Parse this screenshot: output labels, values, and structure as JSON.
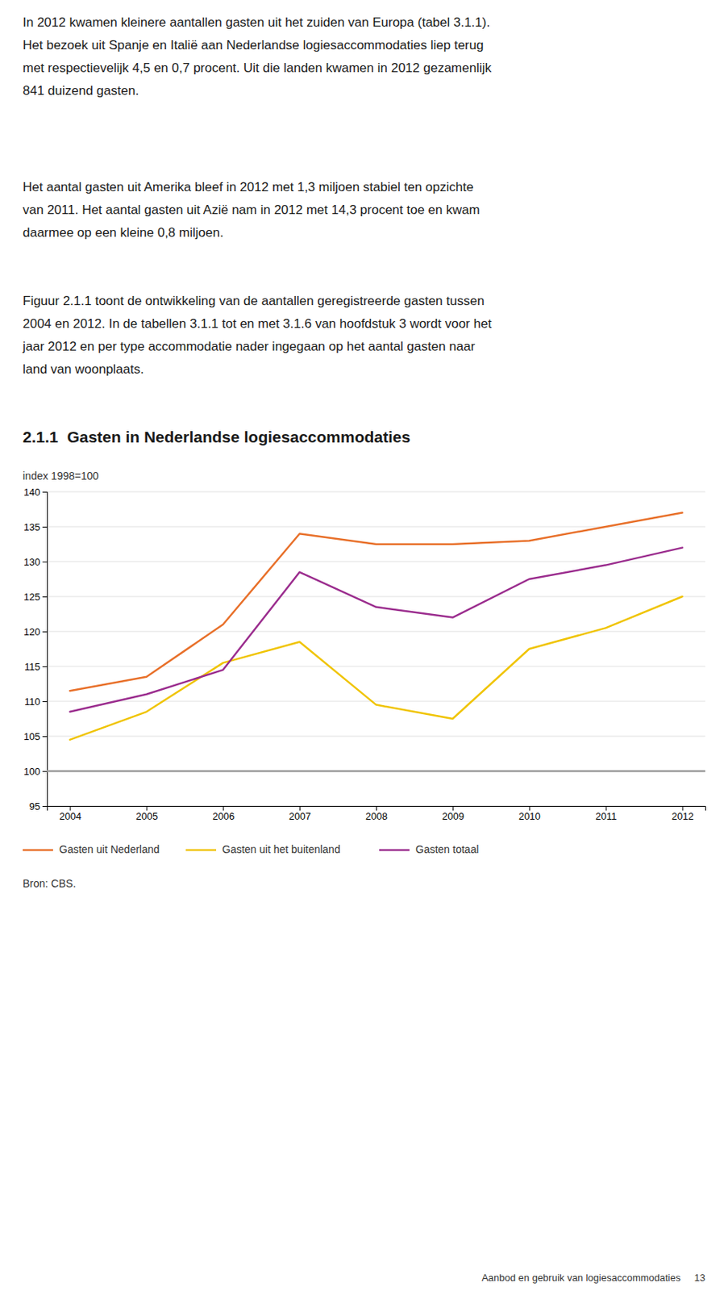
{
  "chart_data": {
    "type": "line",
    "title": "2.1.1  Gasten in Nederlandse logiesaccommodaties",
    "subtitle": "index 1998=100",
    "x": [
      2004,
      2005,
      2006,
      2007,
      2008,
      2009,
      2010,
      2011,
      2012
    ],
    "series": [
      {
        "name": "Gasten uit Nederland",
        "color": "#E8702A",
        "values": [
          111.5,
          113.5,
          121.0,
          134.0,
          132.5,
          132.5,
          133.0,
          135.0,
          137.0
        ]
      },
      {
        "name": "Gasten uit het buitenland",
        "color": "#F0C400",
        "values": [
          104.5,
          108.5,
          115.5,
          118.5,
          109.5,
          107.5,
          117.5,
          120.5,
          125.0
        ]
      },
      {
        "name": "Gasten totaal",
        "color": "#9B2D8E",
        "values": [
          108.5,
          111.0,
          114.5,
          128.5,
          123.5,
          122.0,
          127.5,
          129.5,
          132.0
        ]
      }
    ],
    "xlim": [
      2003.7,
      2012.3
    ],
    "xticks": [
      2004,
      2005,
      2006,
      2007,
      2008,
      2009,
      2010,
      2011,
      2012
    ],
    "ylim": [
      95,
      140
    ],
    "yticks": [
      95,
      100,
      105,
      110,
      115,
      120,
      125,
      130,
      135,
      140
    ],
    "reference_line": 100,
    "grid": true,
    "legend": "bottom",
    "annotations": [
      "In 2012 kwamen kleinere aantallen gasten uit het zuiden van Europa (tabel 3.1.1).\nHet bezoek uit Spanje en Italië aan Nederlandse logiesaccommodaties liep terug\nmet respectievelijk 4,5 en 0,7 procent. Uit die landen kwamen in 2012 gezamenlijk\n841 duizend gasten.",
      "Het aantal gasten uit Amerika bleef in 2012 met 1,3 miljoen stabiel ten opzichte\nvan 2011. Het aantal gasten uit Azië nam in 2012 met 14,3 procent toe en kwam\ndaarmee op een kleine 0,8 miljoen.",
      "Figuur 2.1.1 toont de ontwikkeling van de aantallen geregistreerde gasten tussen\n2004 en 2012. In de tabellen 3.1.1 tot en met 3.1.6 van hoofdstuk 3 wordt voor het\njaar 2012 en per type accommodatie nader ingegaan op het aantal gasten naar\nland van woonplaats.",
      "Bron: CBS.",
      "Aanbod en gebruik van logiesaccommodaties     13"
    ]
  }
}
